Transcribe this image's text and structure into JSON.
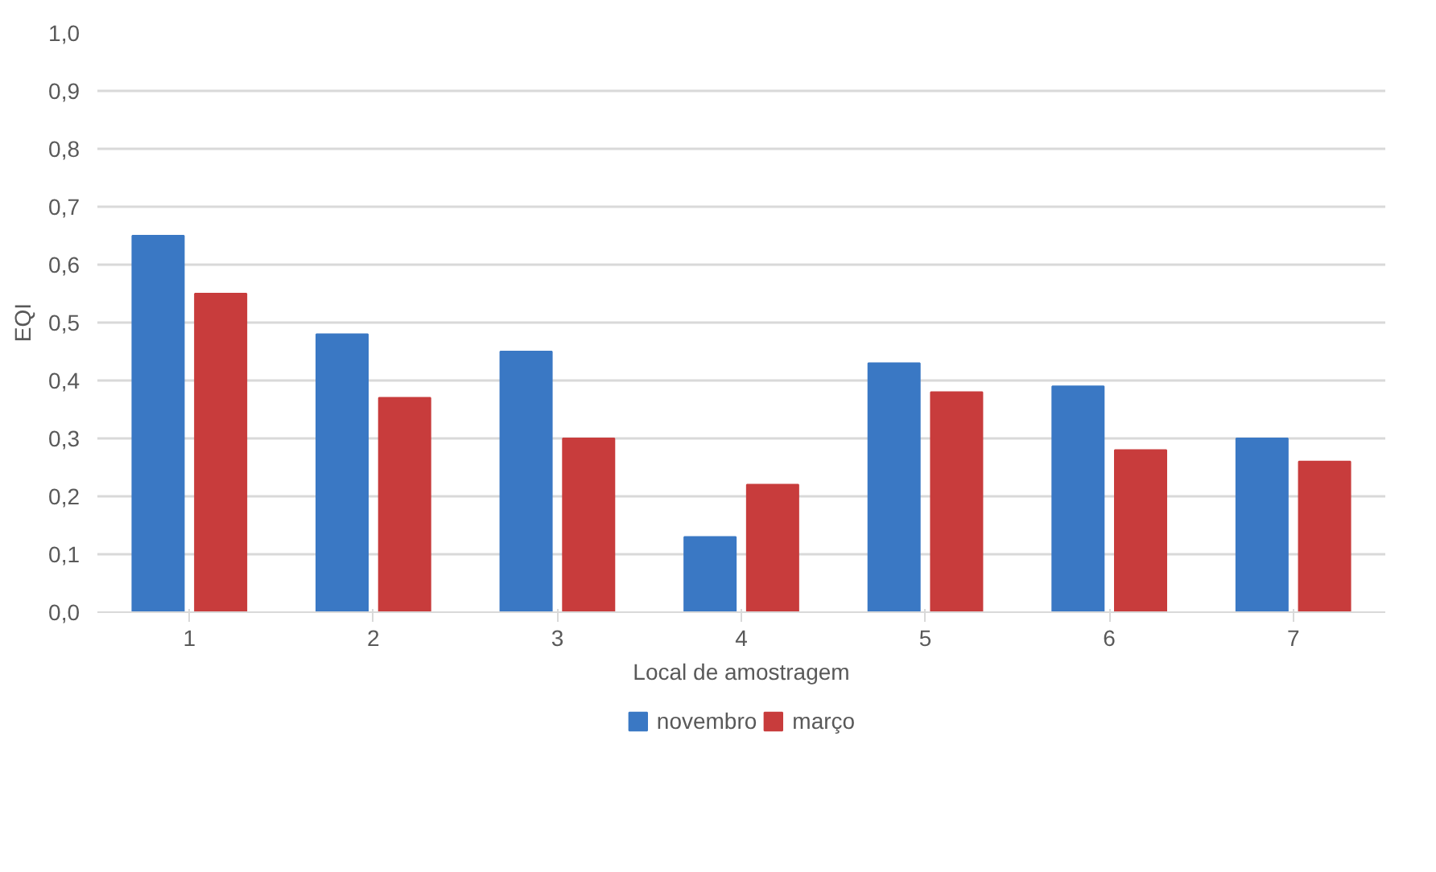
{
  "chart_data": {
    "type": "bar",
    "xlabel": "Local de amostragem",
    "ylabel": "EQI",
    "categories": [
      "1",
      "2",
      "3",
      "4",
      "5",
      "6",
      "7"
    ],
    "series": [
      {
        "name": "novembro",
        "color": "#3a78c4",
        "values": [
          0.65,
          0.48,
          0.45,
          0.13,
          0.43,
          0.39,
          0.3
        ]
      },
      {
        "name": "março",
        "color": "#c83c3c",
        "values": [
          0.55,
          0.37,
          0.3,
          0.22,
          0.38,
          0.28,
          0.26
        ]
      }
    ],
    "ylim": [
      0,
      1
    ],
    "yticks": [
      {
        "value": 0,
        "label": "0,0"
      },
      {
        "value": 0.1,
        "label": "0,1"
      },
      {
        "value": 0.2,
        "label": "0,2"
      },
      {
        "value": 0.3,
        "label": "0,3"
      },
      {
        "value": 0.4,
        "label": "0,4"
      },
      {
        "value": 0.5,
        "label": "0,5"
      },
      {
        "value": 0.6,
        "label": "0,6"
      },
      {
        "value": 0.7,
        "label": "0,7"
      },
      {
        "value": 0.8,
        "label": "0,8"
      },
      {
        "value": 0.9,
        "label": "0,9"
      },
      {
        "value": 1.0,
        "label": "1,0"
      }
    ],
    "grid": "y",
    "legend": "bottom"
  }
}
